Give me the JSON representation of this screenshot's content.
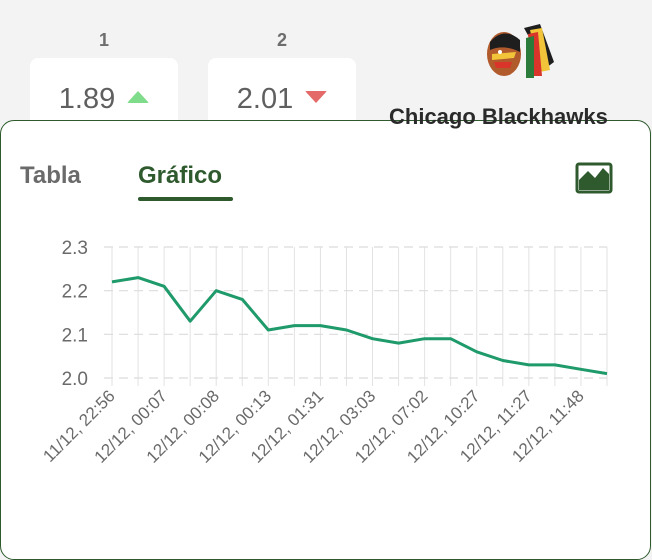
{
  "odds": [
    {
      "label": "1",
      "value": "1.89",
      "trend": "up"
    },
    {
      "label": "2",
      "value": "2.01",
      "trend": "down"
    }
  ],
  "team": {
    "name": "Chicago Blackhawks"
  },
  "tabs": [
    {
      "label": "Tabla",
      "active": false
    },
    {
      "label": "Gráfico",
      "active": true
    }
  ],
  "colors": {
    "accent": "#2f5a2e",
    "line": "#1f9a6a",
    "up": "#7fdc8b",
    "down": "#e46a6a"
  },
  "chart_data": {
    "type": "line",
    "title": "",
    "xlabel": "",
    "ylabel": "",
    "ylim": [
      2.0,
      2.3
    ],
    "yticks": [
      "2.0",
      "2.1",
      "2.2",
      "2.3"
    ],
    "grid": true,
    "x": [
      "11/12, 22:56",
      "",
      "12/12, 00:07",
      "",
      "12/12, 00:08",
      "",
      "12/12, 00:13",
      "",
      "12/12, 01:31",
      "",
      "12/12, 03:03",
      "",
      "12/12, 07:02",
      "",
      "12/12, 10:27",
      "",
      "12/12, 11:27",
      "",
      "12/12, 11:48",
      ""
    ],
    "series": [
      {
        "values": [
          2.22,
          2.23,
          2.21,
          2.13,
          2.2,
          2.18,
          2.11,
          2.12,
          2.12,
          2.11,
          2.09,
          2.08,
          2.09,
          2.09,
          2.06,
          2.04,
          2.03,
          2.03,
          2.02,
          2.01
        ]
      }
    ]
  }
}
